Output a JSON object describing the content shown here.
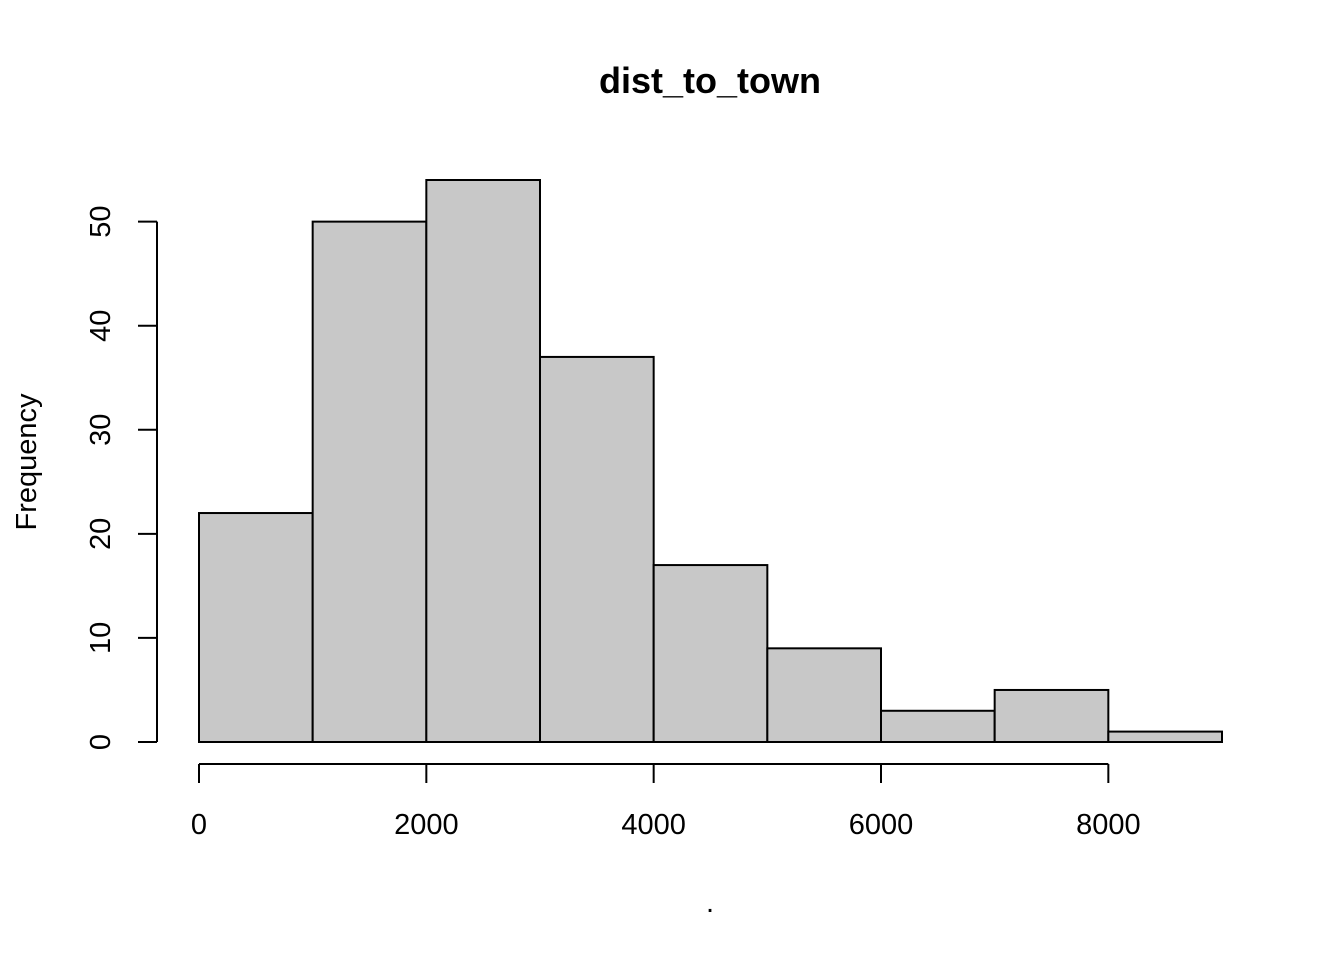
{
  "chart_data": {
    "type": "bar",
    "title": "dist_to_town",
    "xlabel": ".",
    "ylabel": "Frequency",
    "bins": [
      {
        "from": 0,
        "to": 1000,
        "count": 22
      },
      {
        "from": 1000,
        "to": 2000,
        "count": 50
      },
      {
        "from": 2000,
        "to": 3000,
        "count": 54
      },
      {
        "from": 3000,
        "to": 4000,
        "count": 37
      },
      {
        "from": 4000,
        "to": 5000,
        "count": 17
      },
      {
        "from": 5000,
        "to": 6000,
        "count": 9
      },
      {
        "from": 6000,
        "to": 7000,
        "count": 3
      },
      {
        "from": 7000,
        "to": 8000,
        "count": 5
      },
      {
        "from": 8000,
        "to": 9000,
        "count": 1
      }
    ],
    "xlim": [
      0,
      9000
    ],
    "ylim": [
      0,
      54
    ],
    "x_ticks": [
      0,
      2000,
      4000,
      6000,
      8000
    ],
    "y_ticks": [
      0,
      10,
      20,
      30,
      40,
      50
    ],
    "grid": false,
    "colors": {
      "bar_fill": "#c8c8c8",
      "bar_stroke": "#000000",
      "background": "#ffffff"
    }
  }
}
